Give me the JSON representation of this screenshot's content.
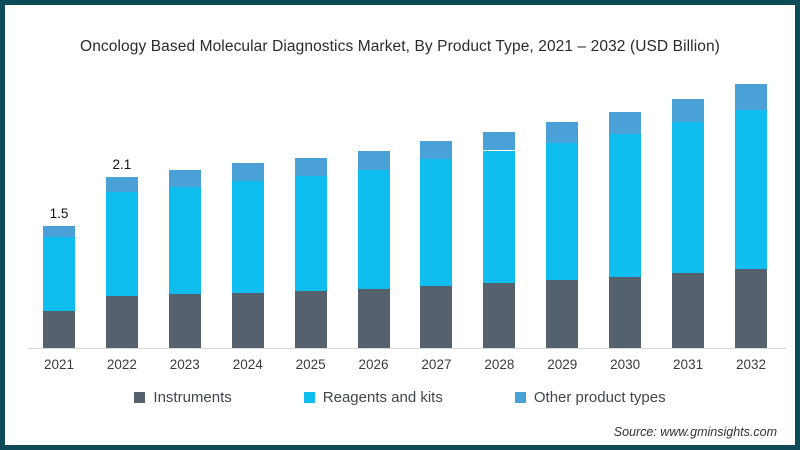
{
  "frame": {
    "border_color": "#0d4b58",
    "background": "#ffffff"
  },
  "title": "Oncology Based Molecular Diagnostics Market, By Product Type, 2021 – 2032 (USD Billion)",
  "source": "Source: www.gminsights.com",
  "legend": [
    {
      "label": "Instruments",
      "color": "#56616e"
    },
    {
      "label": "Reagents and kits",
      "color": "#0fbeef"
    },
    {
      "label": "Other product types",
      "color": "#4aa1d7"
    }
  ],
  "chart_data": {
    "type": "bar",
    "stacked": true,
    "title": "Oncology Based Molecular Diagnostics Market, By Product Type, 2021 – 2032 (USD Billion)",
    "xlabel": "",
    "ylabel": "USD Billion",
    "ylim": [
      0,
      3.5
    ],
    "grid": false,
    "legend_position": "bottom",
    "categories": [
      "2021",
      "2022",
      "2023",
      "2024",
      "2025",
      "2026",
      "2027",
      "2028",
      "2029",
      "2030",
      "2031",
      "2032"
    ],
    "series": [
      {
        "name": "Instruments",
        "color": "#56616e",
        "values": [
          0.45,
          0.64,
          0.66,
          0.68,
          0.7,
          0.73,
          0.76,
          0.8,
          0.84,
          0.87,
          0.92,
          0.97
        ]
      },
      {
        "name": "Reagents and kits",
        "color": "#0fbeef",
        "values": [
          0.91,
          1.28,
          1.32,
          1.37,
          1.42,
          1.46,
          1.56,
          1.63,
          1.68,
          1.76,
          1.86,
          1.96
        ]
      },
      {
        "name": "Other product types",
        "color": "#4aa1d7",
        "values": [
          0.14,
          0.18,
          0.21,
          0.22,
          0.22,
          0.24,
          0.23,
          0.23,
          0.26,
          0.27,
          0.28,
          0.32
        ]
      }
    ],
    "totals": [
      1.5,
      2.1,
      2.19,
      2.27,
      2.34,
      2.43,
      2.55,
      2.66,
      2.78,
      2.9,
      3.06,
      3.25
    ],
    "data_labels": [
      {
        "category": "2021",
        "text": "1.5"
      },
      {
        "category": "2022",
        "text": "2.1"
      }
    ]
  }
}
